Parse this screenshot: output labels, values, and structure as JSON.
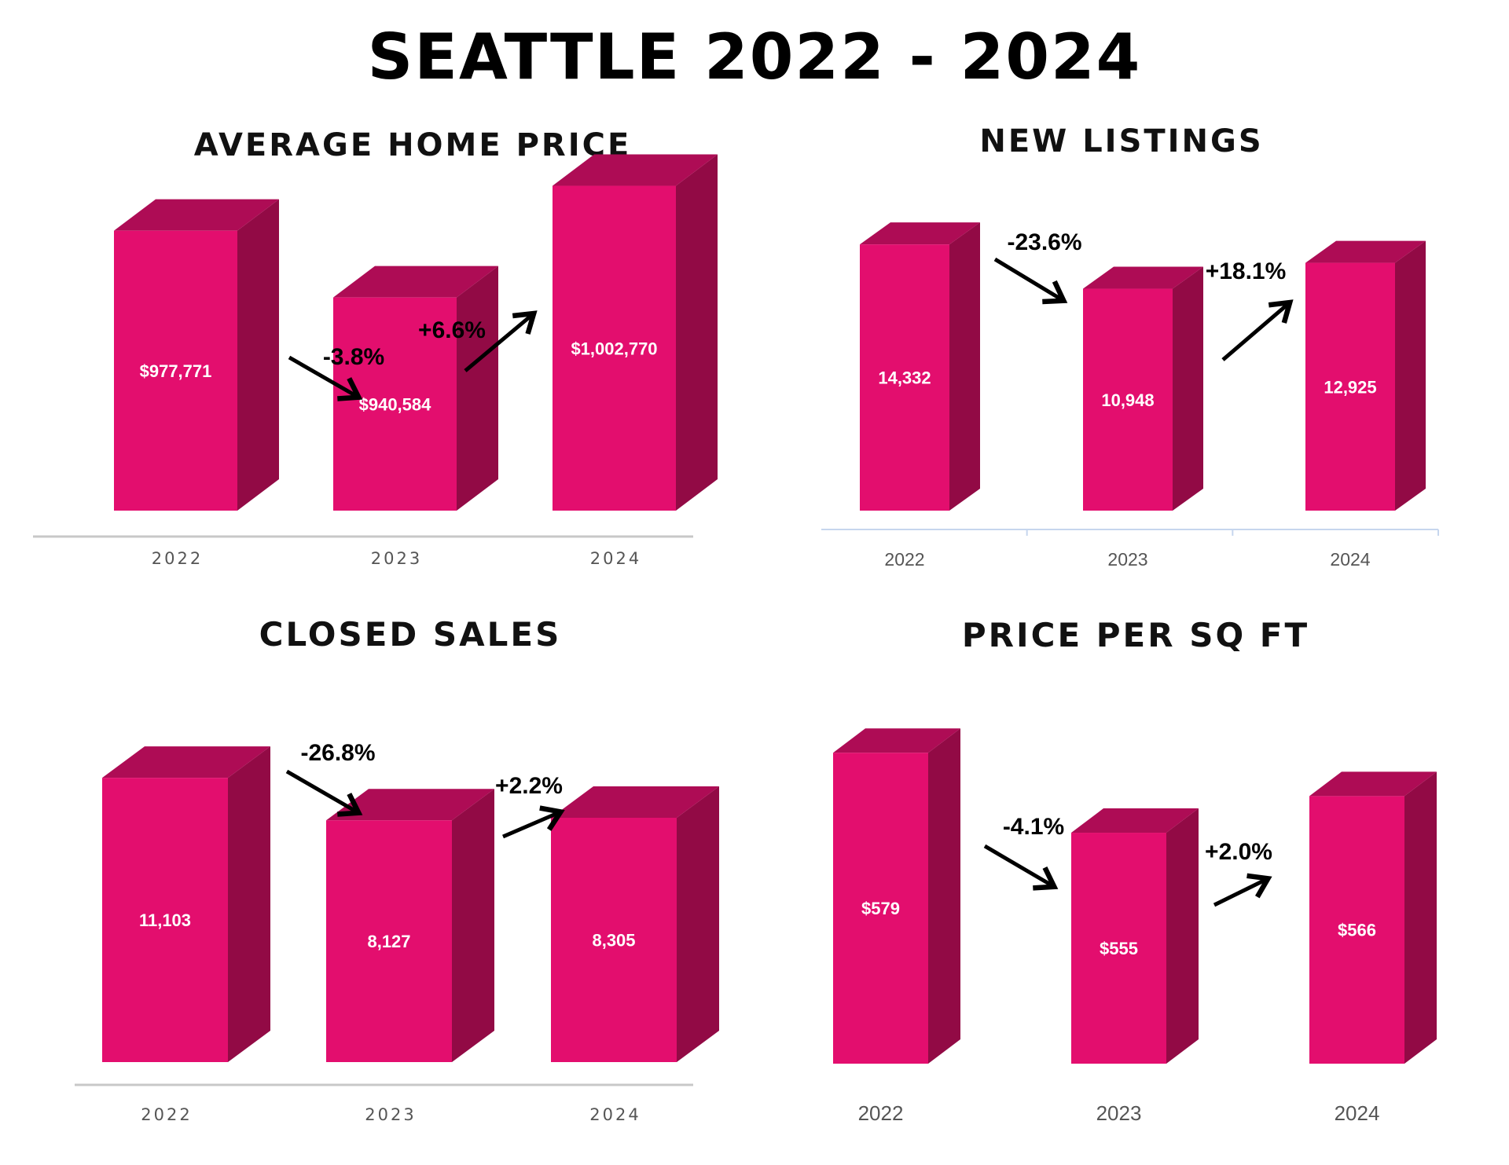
{
  "title": "SEATTLE 2022 - 2024",
  "colors": {
    "bar_front": "#e30e6e",
    "bar_top": "#ae0c55",
    "bar_side": "#920a45",
    "axis": "#c8c8c8",
    "axis_blue": "#c6d6ee"
  },
  "chart_data": [
    {
      "type": "bar",
      "title": "AVERAGE HOME PRICE",
      "categories": [
        "2022",
        "2023",
        "2024"
      ],
      "values": [
        977771,
        940584,
        1002770
      ],
      "value_labels": [
        "$977,771",
        "$940,584",
        "$1,002,770"
      ],
      "changes": [
        "-3.8%",
        "+6.6%"
      ],
      "ylim": [
        870000,
        1010000
      ]
    },
    {
      "type": "bar",
      "title": "NEW LISTINGS",
      "categories": [
        "2022",
        "2023",
        "2024"
      ],
      "values": [
        14332,
        10948,
        12925
      ],
      "value_labels": [
        "14,332",
        "10,948",
        "12,925"
      ],
      "changes": [
        "-23.6%",
        "+18.1%"
      ],
      "ylim": [
        0,
        14400
      ]
    },
    {
      "type": "bar",
      "title": "CLOSED SALES",
      "categories": [
        "2022",
        "2023",
        "2024"
      ],
      "values": [
        11103,
        8127,
        8305
      ],
      "value_labels": [
        "11,103",
        "8,127",
        "8,305"
      ],
      "changes": [
        "-26.8%",
        "+2.2%"
      ],
      "ylim": [
        0,
        11110
      ]
    },
    {
      "type": "bar",
      "title": "PRICE PER SQ FT",
      "categories": [
        "2022",
        "2023",
        "2024"
      ],
      "values": [
        579,
        555,
        566
      ],
      "value_labels": [
        "$579",
        "$555",
        "$566"
      ],
      "changes": [
        "-4.1%",
        "+2.0%"
      ],
      "ylim": [
        522,
        580
      ]
    }
  ]
}
